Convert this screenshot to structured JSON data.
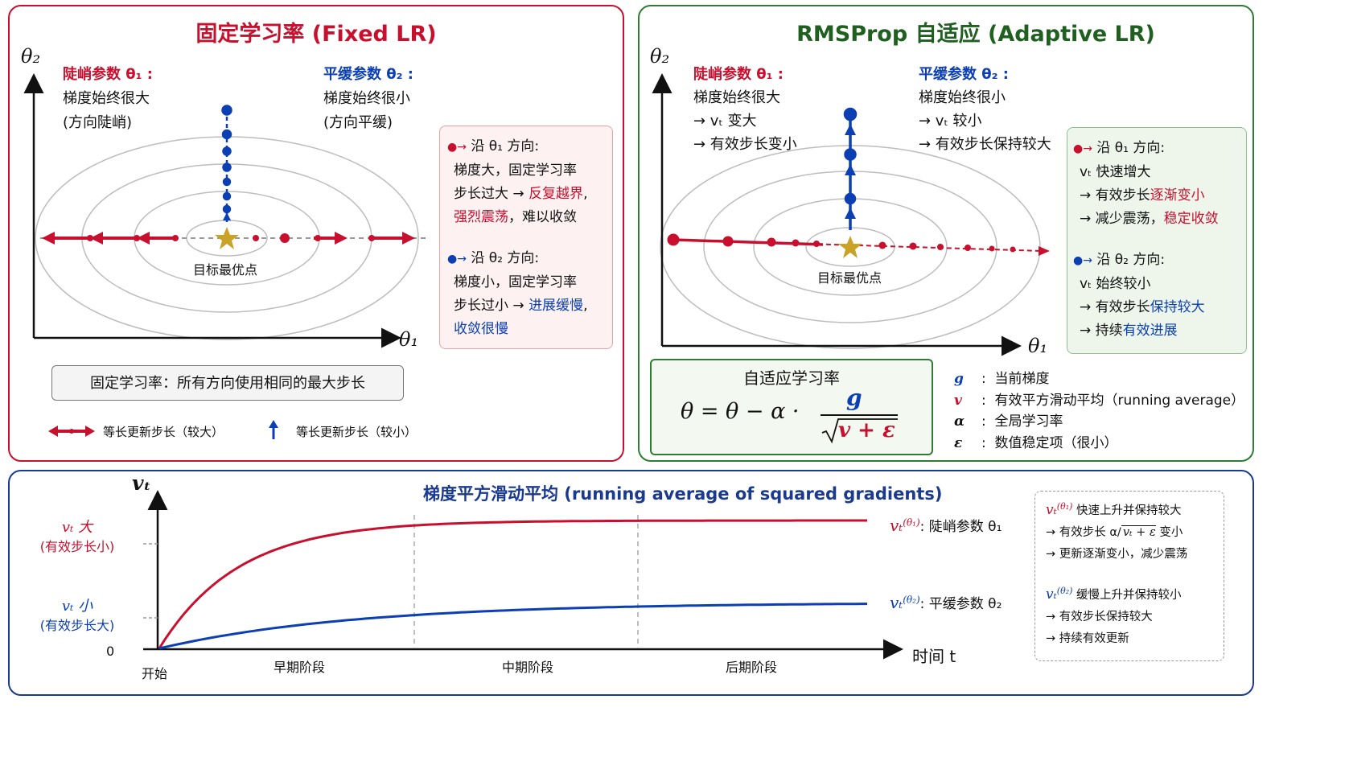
{
  "fixed": {
    "title": "固定学习率 (Fixed LR)",
    "y_axis": "θ₂",
    "x_axis": "θ₁",
    "steep_title": "陡峭参数 θ₁ :",
    "steep_l1": "梯度始终很大",
    "steep_l2": "(方向陡峭)",
    "flat_title": "平缓参数 θ₂ :",
    "flat_l1": "梯度始终很小",
    "flat_l2": "(方向平缓)",
    "optimum": "目标最优点",
    "box1_head": "沿 θ₁ 方向:",
    "box1_l1": "梯度大，固定学习率",
    "box1_l2a": "步长过大 →",
    "box1_l2b": "反复越界",
    "box1_l2c": ",",
    "box1_l3a": "强烈震荡",
    "box1_l3b": "，难以收敛",
    "box2_head": "沿 θ₂ 方向:",
    "box2_l1": "梯度小，固定学习率",
    "box2_l2a": "步长过小 →",
    "box2_l2b": "进展缓慢",
    "box2_l2c": ",",
    "box2_l3": "收敛很慢",
    "summary": "固定学习率：所有方向使用相同的最大步长",
    "legend_red": "等长更新步长（较大）",
    "legend_blue": "等长更新步长（较小）"
  },
  "adaptive": {
    "title": "RMSProp 自适应 (Adaptive LR)",
    "y_axis": "θ₂",
    "x_axis": "θ₁",
    "steep_title": "陡峭参数 θ₁ :",
    "steep_l1": "梯度始终很大",
    "steep_l2": "→ vₜ 变大",
    "steep_l3": "→ 有效步长变小",
    "flat_title": "平缓参数 θ₂ :",
    "flat_l1": "梯度始终很小",
    "flat_l2": "→ vₜ 较小",
    "flat_l3": "→ 有效步长保持较大",
    "optimum": "目标最优点",
    "box1_head": "沿 θ₁ 方向:",
    "box1_l1": "vₜ 快速增大",
    "box1_l2a": "→ 有效步长",
    "box1_l2b": "逐渐变小",
    "box1_l3a": "→ 减少震荡，",
    "box1_l3b": "稳定收敛",
    "box2_head": "沿 θ₂ 方向:",
    "box2_l1": "vₜ 始终较小",
    "box2_l2a": "→ 有效步长",
    "box2_l2b": "保持较大",
    "box2_l3a": "→ 持续",
    "box2_l3b": "有效进展",
    "formula_title": "自适应学习率",
    "formula_lhs": "θ = θ − α ·",
    "formula_num": "g",
    "formula_den": "v + ε",
    "legend": [
      {
        "sym": "g",
        "text": "当前梯度",
        "color": "#0b3fb3"
      },
      {
        "sym": "v",
        "text": "有效平方滑动平均（running average）",
        "color": "#c8102e"
      },
      {
        "sym": "α",
        "text": "全局学习率",
        "color": "#111111"
      },
      {
        "sym": "ε",
        "text": "数值稳定项（很小）",
        "color": "#111111"
      }
    ]
  },
  "bottom": {
    "title": "梯度平方滑动平均 (running average of squared gradients)",
    "y_axis": "vₜ",
    "x_axis": "时间 t",
    "origin": "0",
    "big_l1": "vₜ 大",
    "big_l2": "(有效步长小)",
    "small_l1": "vₜ 小",
    "small_l2": "(有效步长大)",
    "x_ticks": [
      "开始",
      "早期阶段",
      "中期阶段",
      "后期阶段"
    ],
    "label_red_sym": "vₜ",
    "label_red_sup": "(θ₁)",
    "label_red_text": ": 陡峭参数 θ₁",
    "label_blue_sym": "vₜ",
    "label_blue_sup": "(θ₂)",
    "label_blue_text": ": 平缓参数 θ₂",
    "note_red_head": "快速上升并保持较大",
    "note_red_l1a": "→ 有效步长 α/",
    "note_red_l1b": "vₜ + ε",
    "note_red_l1c": "变小",
    "note_red_l2": "→ 更新逐渐变小，减少震荡",
    "note_blue_head": "缓慢上升并保持较小",
    "note_blue_l1": "→ 有效步长保持较大",
    "note_blue_l2": "→ 持续有效更新"
  },
  "colors": {
    "red": "#c8102e",
    "blue": "#0b3fb3",
    "green": "#2e7d32",
    "navy": "#1a3a8f",
    "gold": "#c9a227"
  }
}
